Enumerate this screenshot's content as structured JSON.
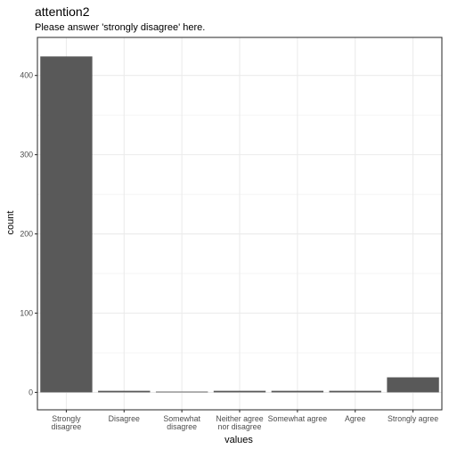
{
  "chart_data": {
    "type": "bar",
    "title": "attention2",
    "subtitle": "Please answer 'strongly disagree' here.",
    "xlabel": "values",
    "ylabel": "count",
    "categories": [
      [
        "Strongly",
        "disagree"
      ],
      [
        "Disagree"
      ],
      [
        "Somewhat",
        "disagree"
      ],
      [
        "Neither agree",
        "nor disagree"
      ],
      [
        "Somewhat agree"
      ],
      [
        "Agree"
      ],
      [
        "Strongly agree"
      ]
    ],
    "values": [
      424,
      2,
      1,
      2,
      2,
      2,
      19
    ],
    "yticks": [
      0,
      100,
      200,
      300,
      400
    ],
    "ylim": [
      -22,
      448
    ],
    "grid": true,
    "theme": "bw",
    "bar_color": "#595959",
    "grid_color": "#ebebeb",
    "border_color": "#333333"
  }
}
